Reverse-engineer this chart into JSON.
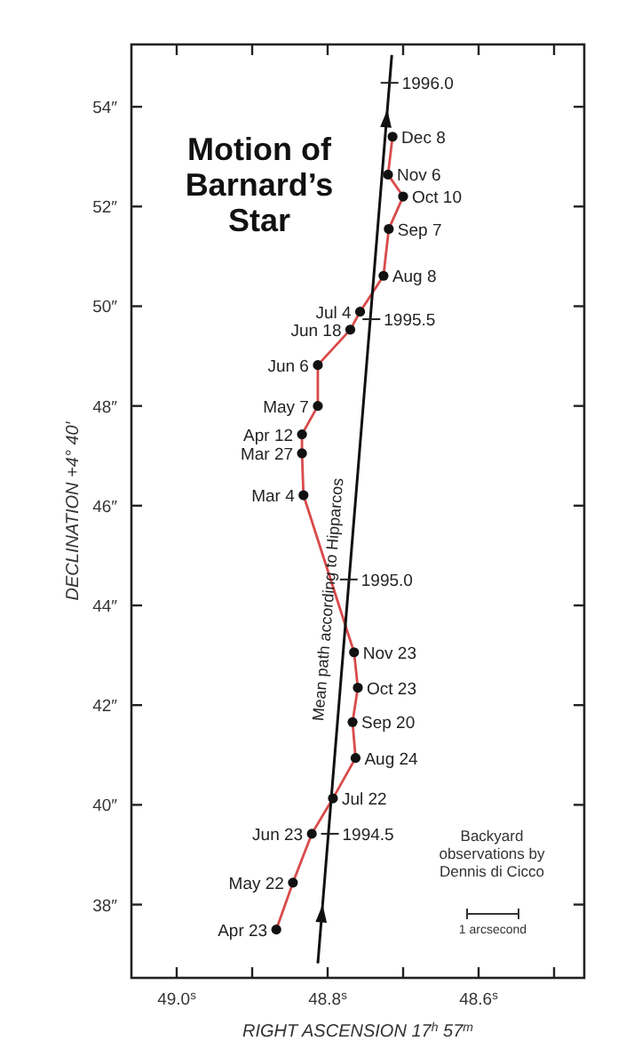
{
  "chart_data": {
    "type": "scatter",
    "title": "Motion of\nBarnard’s\nStar",
    "xlabel": "RIGHT  ASCENSION  17$^{h}$ 57$^{m}$",
    "ylabel": "DECLINATION  +4° 40′",
    "xlim": [
      49.06,
      48.46
    ],
    "ylim": [
      36.53,
      55.25
    ],
    "xticks": [
      {
        "value": 49.0,
        "label": "49.0$^{s}$"
      },
      {
        "value": 48.9,
        "label": null
      },
      {
        "value": 48.8,
        "label": "48.8$^{s}$"
      },
      {
        "value": 48.7,
        "label": null
      },
      {
        "value": 48.6,
        "label": "48.6$^{s}$"
      },
      {
        "value": 48.5,
        "label": null
      }
    ],
    "yticks": [
      {
        "value": 38,
        "label": "38″"
      },
      {
        "value": 40,
        "label": "40″"
      },
      {
        "value": 42,
        "label": "42″"
      },
      {
        "value": 44,
        "label": "44″"
      },
      {
        "value": 46,
        "label": "46″"
      },
      {
        "value": 48,
        "label": "48″"
      },
      {
        "value": 50,
        "label": "50″"
      },
      {
        "value": 52,
        "label": "52″"
      },
      {
        "value": 54,
        "label": "54″"
      }
    ],
    "grid": false,
    "series": [
      {
        "type": "line",
        "color": "#d94a4a",
        "marker": "none",
        "x": [
          48.868,
          48.846,
          48.821,
          48.793,
          48.763,
          48.767,
          48.76,
          48.765,
          48.832,
          48.834,
          48.834,
          48.813,
          48.813,
          48.77,
          48.757,
          48.726,
          48.719,
          48.7,
          48.72,
          48.714
        ],
        "values": [
          37.5,
          38.44,
          39.42,
          40.13,
          40.94,
          41.66,
          42.35,
          43.06,
          46.21,
          47.05,
          47.43,
          48.0,
          48.82,
          49.53,
          49.89,
          50.61,
          51.55,
          52.2,
          52.64,
          53.4
        ]
      },
      {
        "color": "#111111",
        "marker": "circle",
        "x": [
          48.868,
          48.846,
          48.821,
          48.793,
          48.763,
          48.767,
          48.76,
          48.765,
          48.832,
          48.834,
          48.834,
          48.813,
          48.813,
          48.77,
          48.757,
          48.726,
          48.719,
          48.7,
          48.72,
          48.714
        ],
        "values": [
          37.5,
          38.44,
          39.42,
          40.13,
          40.94,
          41.66,
          42.35,
          43.06,
          46.21,
          47.05,
          47.43,
          48.0,
          48.82,
          49.53,
          49.89,
          50.61,
          51.55,
          52.2,
          52.64,
          53.4
        ],
        "value_labels": [
          "Apr 23",
          "May 22",
          "Jun 23",
          "Jul 22",
          "Aug 24",
          "Sep 20",
          "Oct 23",
          "Nov 23",
          "Mar 4",
          "Mar 27",
          "Apr 12",
          "May 7",
          "Jun 6",
          "Jun 18",
          "Jul 4",
          "Aug 8",
          "Sep 7",
          "Oct 10",
          "Nov 6",
          "Dec 8"
        ]
      },
      {
        "type": "line",
        "name": "Mean path according to Hipparcos",
        "color": "#111111",
        "marker": "none",
        "x": [
          48.813,
          48.715
        ],
        "values": [
          36.82,
          55.04
        ]
      }
    ],
    "annotations": [
      {
        "text": "1994.5",
        "x": 48.797,
        "y": 39.42
      },
      {
        "text": "1995.0",
        "x": 48.772,
        "y": 44.52
      },
      {
        "text": "1995.5",
        "x": 48.742,
        "y": 49.74
      },
      {
        "text": "1996.0",
        "x": 48.718,
        "y": 54.48
      },
      "Backyard\nobservations by\nDennis di Cicco",
      "1 arcsecond"
    ]
  }
}
